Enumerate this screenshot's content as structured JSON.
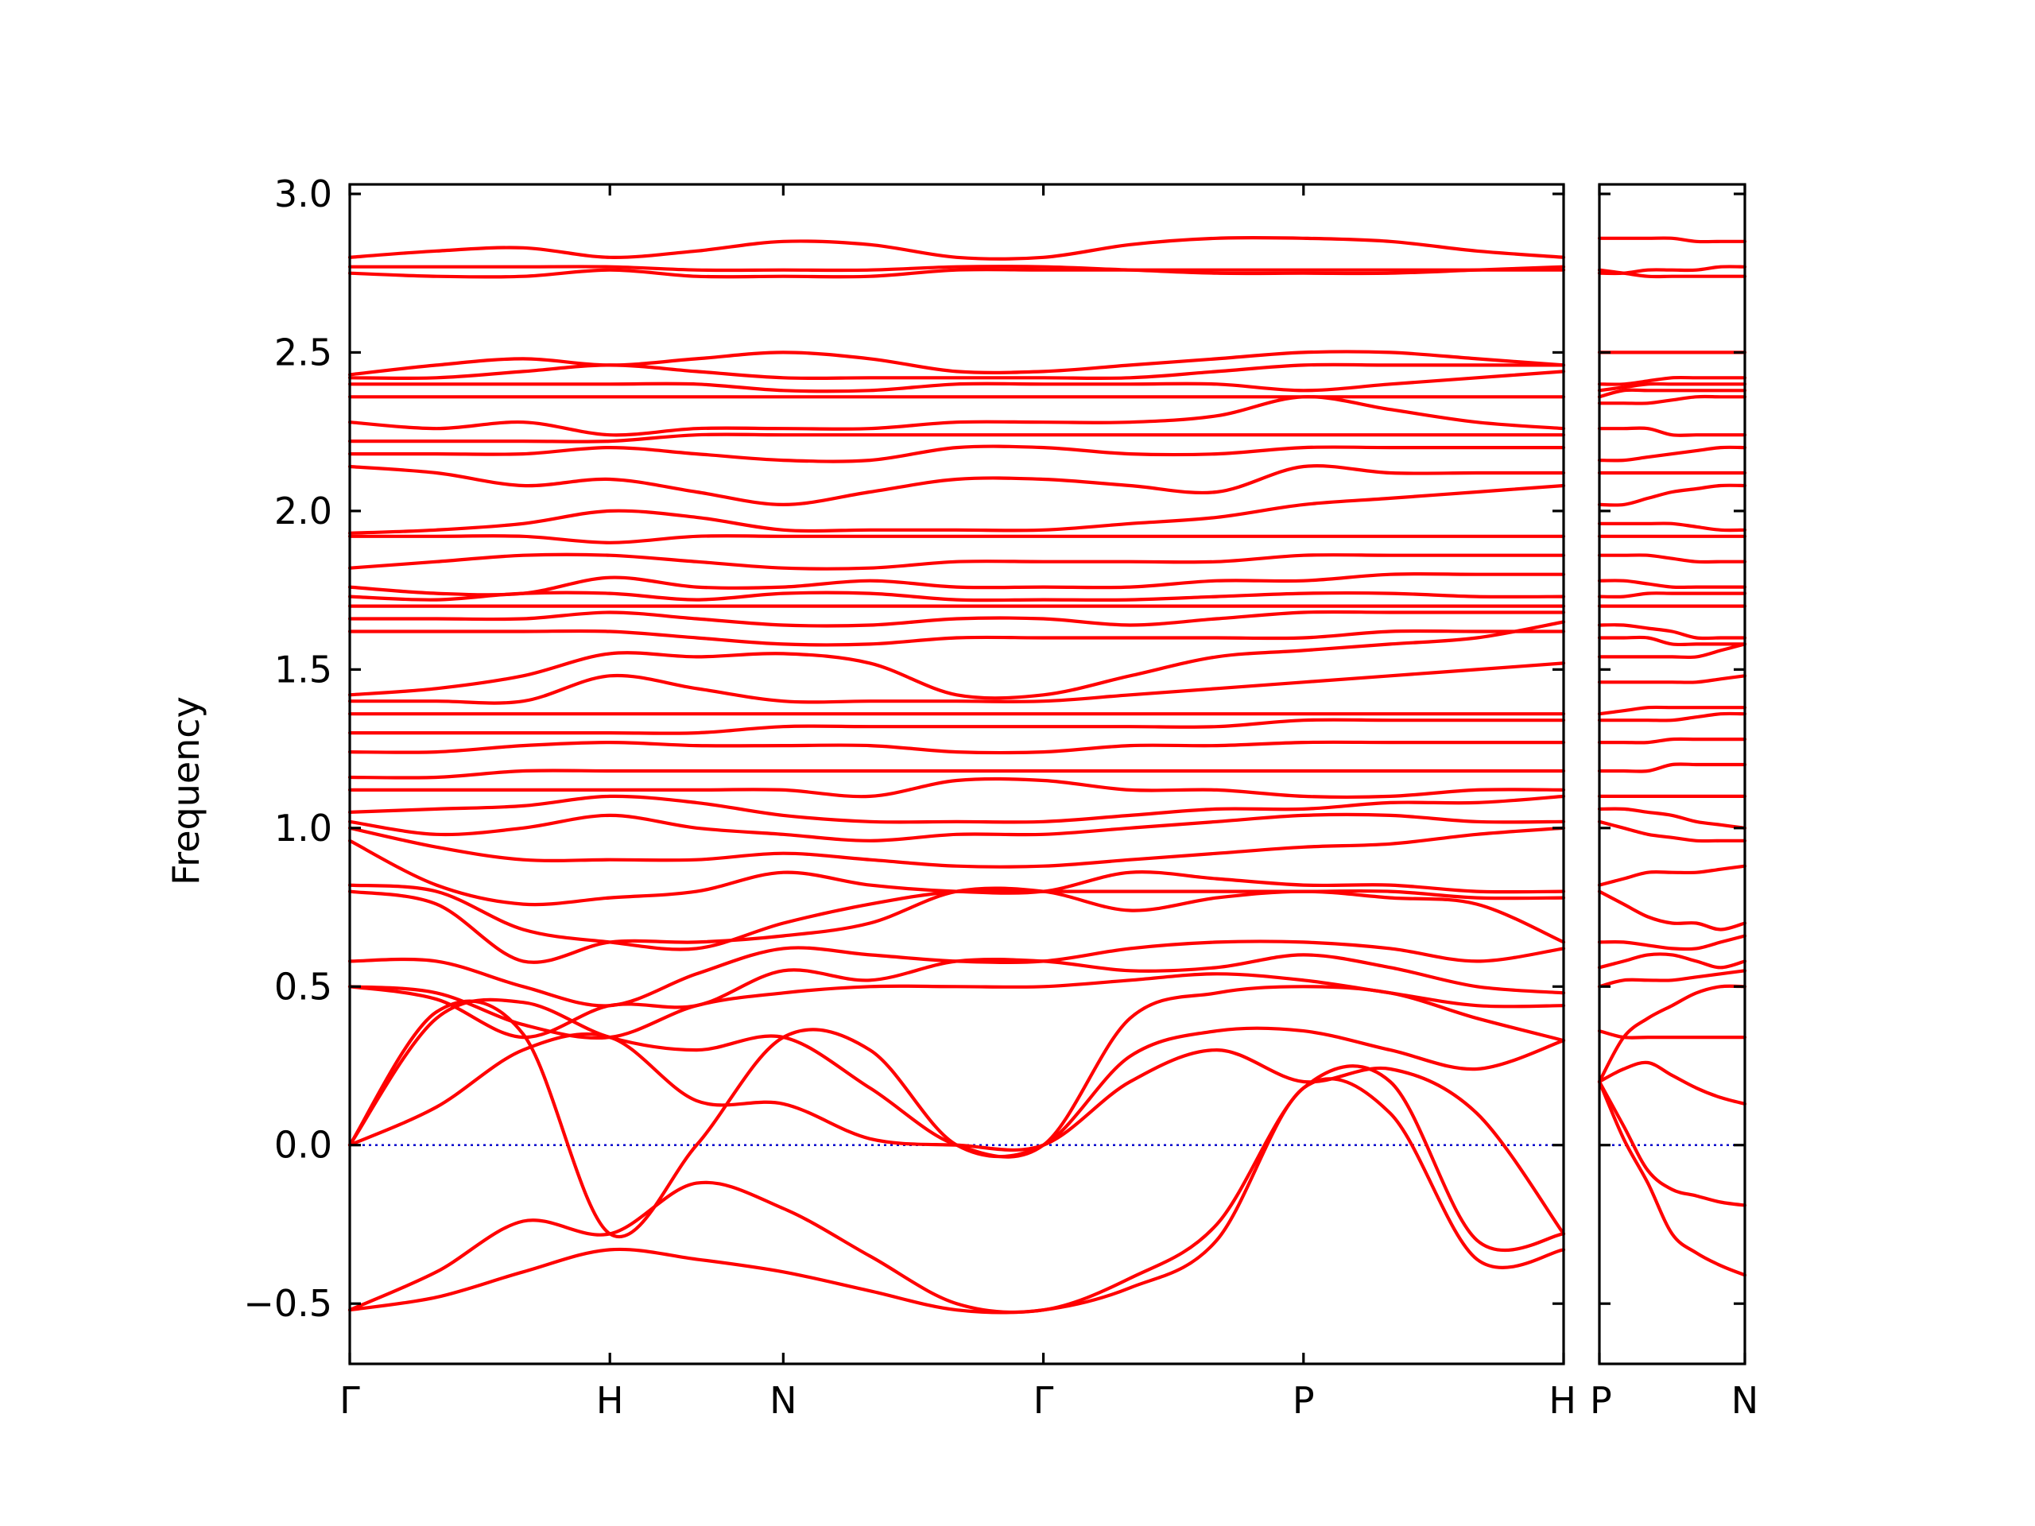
{
  "chart_data": {
    "type": "line",
    "title": "",
    "ylabel": "Frequency",
    "xlabel": "",
    "ylim": [
      -0.69,
      3.03
    ],
    "y_ticks": [
      -0.5,
      0.0,
      0.5,
      1.0,
      1.5,
      2.0,
      2.5,
      3.0
    ],
    "y_tick_labels": [
      "−0.5",
      "0.0",
      "0.5",
      "1.0",
      "1.5",
      "2.0",
      "2.5",
      "3.0"
    ],
    "band_color": "#ff0000",
    "zero_line_color": "#0000cc",
    "segments": [
      {
        "path": "Γ-H-N-Γ-P-H",
        "x_points": [
          0,
          0.6,
          1.0,
          1.6,
          2.2,
          2.8
        ],
        "labels": [
          "Γ",
          "H",
          "N",
          "Γ",
          "P",
          "H"
        ],
        "sample_x": [
          0,
          0.2,
          0.4,
          0.6,
          0.8,
          1.0,
          1.2,
          1.4,
          1.6,
          1.8,
          2.0,
          2.2,
          2.4,
          2.6,
          2.8
        ],
        "bands": [
          [
            -0.52,
            -0.48,
            -0.4,
            -0.33,
            -0.36,
            -0.4,
            -0.46,
            -0.52,
            -0.52,
            -0.45,
            -0.3,
            0.18,
            0.1,
            -0.36,
            -0.33
          ],
          [
            -0.52,
            -0.4,
            -0.24,
            -0.28,
            -0.12,
            -0.2,
            -0.35,
            -0.5,
            -0.52,
            -0.42,
            -0.25,
            0.18,
            0.2,
            -0.3,
            -0.28
          ],
          [
            0.0,
            0.12,
            0.3,
            0.34,
            0.14,
            0.13,
            0.02,
            0.0,
            0.0,
            0.2,
            0.3,
            0.2,
            0.24,
            0.1,
            -0.28
          ],
          [
            0.0,
            0.42,
            0.35,
            -0.28,
            0.0,
            0.34,
            0.3,
            0.0,
            0.0,
            0.28,
            0.36,
            0.36,
            0.3,
            0.24,
            0.33
          ],
          [
            0.0,
            0.4,
            0.45,
            0.34,
            0.3,
            0.34,
            0.18,
            0.0,
            0.0,
            0.4,
            0.48,
            0.5,
            0.48,
            0.4,
            0.33
          ],
          [
            0.5,
            0.48,
            0.38,
            0.34,
            0.44,
            0.48,
            0.5,
            0.5,
            0.5,
            0.52,
            0.54,
            0.52,
            0.48,
            0.44,
            0.44
          ],
          [
            0.5,
            0.46,
            0.34,
            0.44,
            0.44,
            0.55,
            0.52,
            0.58,
            0.58,
            0.55,
            0.56,
            0.6,
            0.56,
            0.5,
            0.48
          ],
          [
            0.58,
            0.58,
            0.5,
            0.44,
            0.54,
            0.62,
            0.6,
            0.58,
            0.58,
            0.62,
            0.64,
            0.64,
            0.62,
            0.58,
            0.62
          ],
          [
            0.8,
            0.76,
            0.58,
            0.64,
            0.64,
            0.66,
            0.7,
            0.8,
            0.8,
            0.74,
            0.78,
            0.8,
            0.78,
            0.76,
            0.64
          ],
          [
            0.82,
            0.8,
            0.68,
            0.64,
            0.62,
            0.7,
            0.76,
            0.8,
            0.8,
            0.8,
            0.8,
            0.8,
            0.8,
            0.78,
            0.78
          ],
          [
            0.96,
            0.82,
            0.76,
            0.78,
            0.8,
            0.86,
            0.82,
            0.8,
            0.8,
            0.86,
            0.84,
            0.82,
            0.82,
            0.8,
            0.8
          ],
          [
            1.0,
            0.94,
            0.9,
            0.9,
            0.9,
            0.92,
            0.9,
            0.88,
            0.88,
            0.9,
            0.92,
            0.94,
            0.95,
            0.98,
            1.0
          ],
          [
            1.02,
            0.98,
            1.0,
            1.04,
            1.0,
            0.98,
            0.96,
            0.98,
            0.98,
            1.0,
            1.02,
            1.04,
            1.04,
            1.02,
            1.02
          ],
          [
            1.05,
            1.06,
            1.07,
            1.1,
            1.08,
            1.04,
            1.02,
            1.02,
            1.02,
            1.04,
            1.06,
            1.06,
            1.08,
            1.08,
            1.1
          ],
          [
            1.12,
            1.12,
            1.12,
            1.12,
            1.12,
            1.12,
            1.1,
            1.15,
            1.15,
            1.12,
            1.12,
            1.1,
            1.1,
            1.12,
            1.12
          ],
          [
            1.16,
            1.16,
            1.18,
            1.18,
            1.18,
            1.18,
            1.18,
            1.18,
            1.18,
            1.18,
            1.18,
            1.18,
            1.18,
            1.18,
            1.18
          ],
          [
            1.24,
            1.24,
            1.26,
            1.27,
            1.26,
            1.26,
            1.26,
            1.24,
            1.24,
            1.26,
            1.26,
            1.27,
            1.27,
            1.27,
            1.27
          ],
          [
            1.3,
            1.3,
            1.3,
            1.3,
            1.3,
            1.32,
            1.32,
            1.32,
            1.32,
            1.32,
            1.32,
            1.34,
            1.34,
            1.34,
            1.34
          ],
          [
            1.36,
            1.36,
            1.36,
            1.36,
            1.36,
            1.36,
            1.36,
            1.36,
            1.36,
            1.36,
            1.36,
            1.36,
            1.36,
            1.36,
            1.36
          ],
          [
            1.4,
            1.4,
            1.4,
            1.48,
            1.44,
            1.4,
            1.4,
            1.4,
            1.4,
            1.42,
            1.44,
            1.46,
            1.48,
            1.5,
            1.52
          ],
          [
            1.42,
            1.44,
            1.48,
            1.55,
            1.54,
            1.55,
            1.52,
            1.42,
            1.42,
            1.48,
            1.54,
            1.56,
            1.58,
            1.6,
            1.65
          ],
          [
            1.62,
            1.62,
            1.62,
            1.62,
            1.6,
            1.58,
            1.58,
            1.6,
            1.6,
            1.6,
            1.6,
            1.6,
            1.62,
            1.62,
            1.62
          ],
          [
            1.66,
            1.66,
            1.66,
            1.68,
            1.66,
            1.64,
            1.64,
            1.66,
            1.66,
            1.64,
            1.66,
            1.68,
            1.68,
            1.68,
            1.68
          ],
          [
            1.7,
            1.7,
            1.7,
            1.7,
            1.7,
            1.7,
            1.7,
            1.7,
            1.7,
            1.7,
            1.7,
            1.7,
            1.7,
            1.7,
            1.7
          ],
          [
            1.73,
            1.72,
            1.74,
            1.74,
            1.72,
            1.74,
            1.74,
            1.72,
            1.72,
            1.72,
            1.73,
            1.74,
            1.74,
            1.73,
            1.73
          ],
          [
            1.76,
            1.74,
            1.74,
            1.79,
            1.76,
            1.76,
            1.78,
            1.76,
            1.76,
            1.76,
            1.78,
            1.78,
            1.8,
            1.8,
            1.8
          ],
          [
            1.82,
            1.84,
            1.86,
            1.86,
            1.84,
            1.82,
            1.82,
            1.84,
            1.84,
            1.84,
            1.84,
            1.86,
            1.86,
            1.86,
            1.86
          ],
          [
            1.92,
            1.92,
            1.92,
            1.9,
            1.92,
            1.92,
            1.92,
            1.92,
            1.92,
            1.92,
            1.92,
            1.92,
            1.92,
            1.92,
            1.92
          ],
          [
            1.93,
            1.94,
            1.96,
            2.0,
            1.98,
            1.94,
            1.94,
            1.94,
            1.94,
            1.96,
            1.98,
            2.02,
            2.04,
            2.06,
            2.08
          ],
          [
            2.14,
            2.12,
            2.08,
            2.1,
            2.06,
            2.02,
            2.06,
            2.1,
            2.1,
            2.08,
            2.06,
            2.14,
            2.12,
            2.12,
            2.12
          ],
          [
            2.18,
            2.18,
            2.18,
            2.2,
            2.18,
            2.16,
            2.16,
            2.2,
            2.2,
            2.18,
            2.18,
            2.2,
            2.2,
            2.2,
            2.2
          ],
          [
            2.22,
            2.22,
            2.22,
            2.22,
            2.24,
            2.24,
            2.24,
            2.24,
            2.24,
            2.24,
            2.24,
            2.24,
            2.24,
            2.24,
            2.24
          ],
          [
            2.28,
            2.26,
            2.28,
            2.24,
            2.26,
            2.26,
            2.26,
            2.28,
            2.28,
            2.28,
            2.3,
            2.36,
            2.32,
            2.28,
            2.26
          ],
          [
            2.36,
            2.36,
            2.36,
            2.36,
            2.36,
            2.36,
            2.36,
            2.36,
            2.36,
            2.36,
            2.36,
            2.36,
            2.36,
            2.36,
            2.36
          ],
          [
            2.4,
            2.4,
            2.4,
            2.4,
            2.4,
            2.38,
            2.38,
            2.4,
            2.4,
            2.4,
            2.4,
            2.38,
            2.4,
            2.42,
            2.44
          ],
          [
            2.42,
            2.42,
            2.44,
            2.46,
            2.44,
            2.42,
            2.42,
            2.42,
            2.42,
            2.42,
            2.44,
            2.46,
            2.46,
            2.46,
            2.46
          ],
          [
            2.43,
            2.46,
            2.48,
            2.46,
            2.48,
            2.5,
            2.48,
            2.44,
            2.44,
            2.46,
            2.48,
            2.5,
            2.5,
            2.48,
            2.46
          ],
          [
            2.75,
            2.74,
            2.74,
            2.76,
            2.74,
            2.74,
            2.74,
            2.76,
            2.76,
            2.76,
            2.76,
            2.76,
            2.76,
            2.76,
            2.76
          ],
          [
            2.77,
            2.77,
            2.77,
            2.77,
            2.76,
            2.76,
            2.76,
            2.77,
            2.77,
            2.76,
            2.75,
            2.75,
            2.75,
            2.76,
            2.77
          ],
          [
            2.8,
            2.82,
            2.83,
            2.8,
            2.82,
            2.85,
            2.84,
            2.8,
            2.8,
            2.84,
            2.86,
            2.86,
            2.85,
            2.82,
            2.8
          ]
        ]
      },
      {
        "path": "P-N",
        "x_points": [
          0,
          0.3
        ],
        "labels": [
          "P",
          "N"
        ],
        "sample_x": [
          0,
          0.05,
          0.1,
          0.15,
          0.2,
          0.25,
          0.3
        ],
        "bands": [
          [
            0.2,
            0.02,
            -0.12,
            -0.28,
            -0.34,
            -0.38,
            -0.41
          ],
          [
            0.2,
            0.06,
            -0.08,
            -0.14,
            -0.16,
            -0.18,
            -0.19
          ],
          [
            0.2,
            0.24,
            0.26,
            0.22,
            0.18,
            0.15,
            0.13
          ],
          [
            0.36,
            0.34,
            0.34,
            0.34,
            0.34,
            0.34,
            0.34
          ],
          [
            0.2,
            0.34,
            0.4,
            0.44,
            0.48,
            0.5,
            0.5
          ],
          [
            0.5,
            0.52,
            0.52,
            0.52,
            0.53,
            0.54,
            0.55
          ],
          [
            0.56,
            0.58,
            0.6,
            0.6,
            0.58,
            0.56,
            0.58
          ],
          [
            0.64,
            0.64,
            0.63,
            0.62,
            0.62,
            0.64,
            0.66
          ],
          [
            0.8,
            0.76,
            0.72,
            0.7,
            0.7,
            0.68,
            0.7
          ],
          [
            0.82,
            0.84,
            0.86,
            0.86,
            0.86,
            0.87,
            0.88
          ],
          [
            1.02,
            1.0,
            0.98,
            0.97,
            0.96,
            0.96,
            0.96
          ],
          [
            1.06,
            1.06,
            1.05,
            1.04,
            1.02,
            1.01,
            1.0
          ],
          [
            1.1,
            1.1,
            1.1,
            1.1,
            1.1,
            1.1,
            1.1
          ],
          [
            1.18,
            1.18,
            1.18,
            1.2,
            1.2,
            1.2,
            1.2
          ],
          [
            1.27,
            1.27,
            1.27,
            1.28,
            1.28,
            1.28,
            1.28
          ],
          [
            1.34,
            1.34,
            1.34,
            1.34,
            1.35,
            1.36,
            1.36
          ],
          [
            1.36,
            1.37,
            1.38,
            1.38,
            1.38,
            1.38,
            1.38
          ],
          [
            1.46,
            1.46,
            1.46,
            1.46,
            1.46,
            1.47,
            1.48
          ],
          [
            1.54,
            1.54,
            1.54,
            1.54,
            1.54,
            1.56,
            1.58
          ],
          [
            1.6,
            1.6,
            1.6,
            1.58,
            1.58,
            1.58,
            1.58
          ],
          [
            1.64,
            1.64,
            1.63,
            1.62,
            1.6,
            1.6,
            1.6
          ],
          [
            1.7,
            1.7,
            1.7,
            1.7,
            1.7,
            1.7,
            1.7
          ],
          [
            1.73,
            1.73,
            1.74,
            1.74,
            1.74,
            1.74,
            1.74
          ],
          [
            1.78,
            1.78,
            1.77,
            1.76,
            1.76,
            1.76,
            1.76
          ],
          [
            1.86,
            1.86,
            1.86,
            1.85,
            1.84,
            1.84,
            1.84
          ],
          [
            1.92,
            1.92,
            1.92,
            1.92,
            1.92,
            1.92,
            1.92
          ],
          [
            1.96,
            1.96,
            1.96,
            1.96,
            1.95,
            1.94,
            1.94
          ],
          [
            2.02,
            2.02,
            2.04,
            2.06,
            2.07,
            2.08,
            2.08
          ],
          [
            2.12,
            2.12,
            2.12,
            2.12,
            2.12,
            2.12,
            2.12
          ],
          [
            2.16,
            2.16,
            2.17,
            2.18,
            2.19,
            2.2,
            2.2
          ],
          [
            2.26,
            2.26,
            2.26,
            2.24,
            2.24,
            2.24,
            2.24
          ],
          [
            2.34,
            2.34,
            2.34,
            2.35,
            2.36,
            2.36,
            2.36
          ],
          [
            2.36,
            2.38,
            2.38,
            2.38,
            2.38,
            2.38,
            2.38
          ],
          [
            2.38,
            2.39,
            2.4,
            2.4,
            2.4,
            2.4,
            2.4
          ],
          [
            2.4,
            2.4,
            2.41,
            2.42,
            2.42,
            2.42,
            2.42
          ],
          [
            2.5,
            2.5,
            2.5,
            2.5,
            2.5,
            2.5,
            2.5
          ],
          [
            2.76,
            2.75,
            2.74,
            2.74,
            2.74,
            2.74,
            2.74
          ],
          [
            2.75,
            2.75,
            2.76,
            2.76,
            2.76,
            2.77,
            2.77
          ],
          [
            2.86,
            2.86,
            2.86,
            2.86,
            2.85,
            2.85,
            2.85
          ]
        ]
      }
    ]
  }
}
